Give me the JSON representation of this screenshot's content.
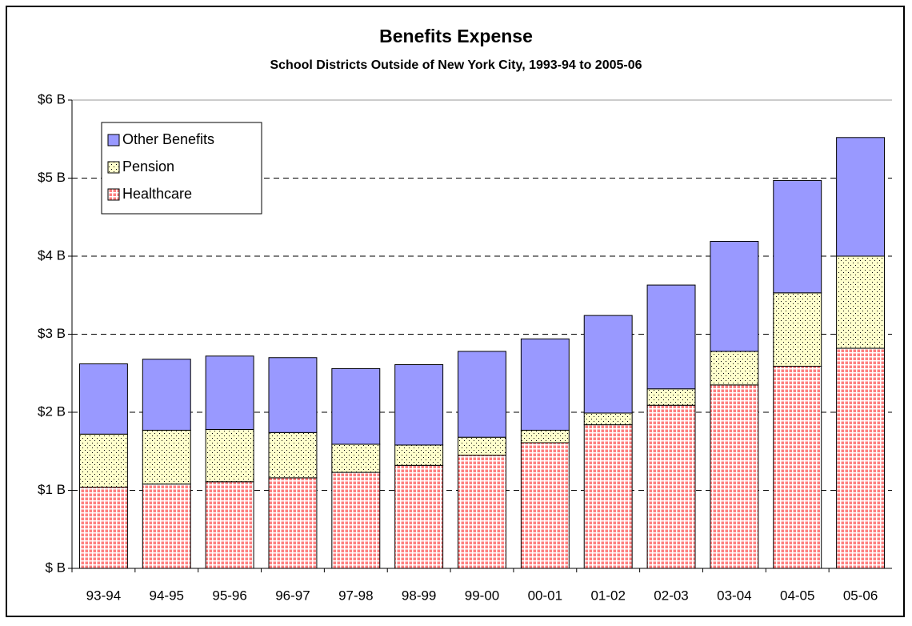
{
  "chart_data": {
    "type": "stacked_bar",
    "title": "Benefits Expense",
    "subtitle": "School Districts Outside of New York City, 1993-94 to 2005-06",
    "categories": [
      "93-94",
      "94-95",
      "95-96",
      "96-97",
      "97-98",
      "98-99",
      "99-00",
      "00-01",
      "01-02",
      "02-03",
      "03-04",
      "04-05",
      "05-06"
    ],
    "series": [
      {
        "name": "Healthcare",
        "color": "#ff8080",
        "values": [
          1.04,
          1.08,
          1.11,
          1.16,
          1.23,
          1.32,
          1.45,
          1.61,
          1.84,
          2.09,
          2.35,
          2.59,
          2.82
        ]
      },
      {
        "name": "Pension",
        "color": "#ffffcc",
        "values": [
          0.68,
          0.69,
          0.67,
          0.58,
          0.36,
          0.26,
          0.23,
          0.16,
          0.15,
          0.21,
          0.43,
          0.94,
          1.18
        ]
      },
      {
        "name": "Other Benefits",
        "color": "#9999ff",
        "values": [
          0.9,
          0.91,
          0.94,
          0.96,
          0.97,
          1.03,
          1.1,
          1.17,
          1.25,
          1.33,
          1.41,
          1.44,
          1.52
        ]
      }
    ],
    "ylim": [
      0,
      6
    ],
    "yticks": [
      {
        "value": 0,
        "label": "$ B"
      },
      {
        "value": 1,
        "label": "$1 B"
      },
      {
        "value": 2,
        "label": "$2 B"
      },
      {
        "value": 3,
        "label": "$3 B"
      },
      {
        "value": 4,
        "label": "$4 B"
      },
      {
        "value": 5,
        "label": "$5 B"
      },
      {
        "value": 6,
        "label": "$6 B"
      }
    ],
    "grid": true,
    "legend": "upper left"
  }
}
